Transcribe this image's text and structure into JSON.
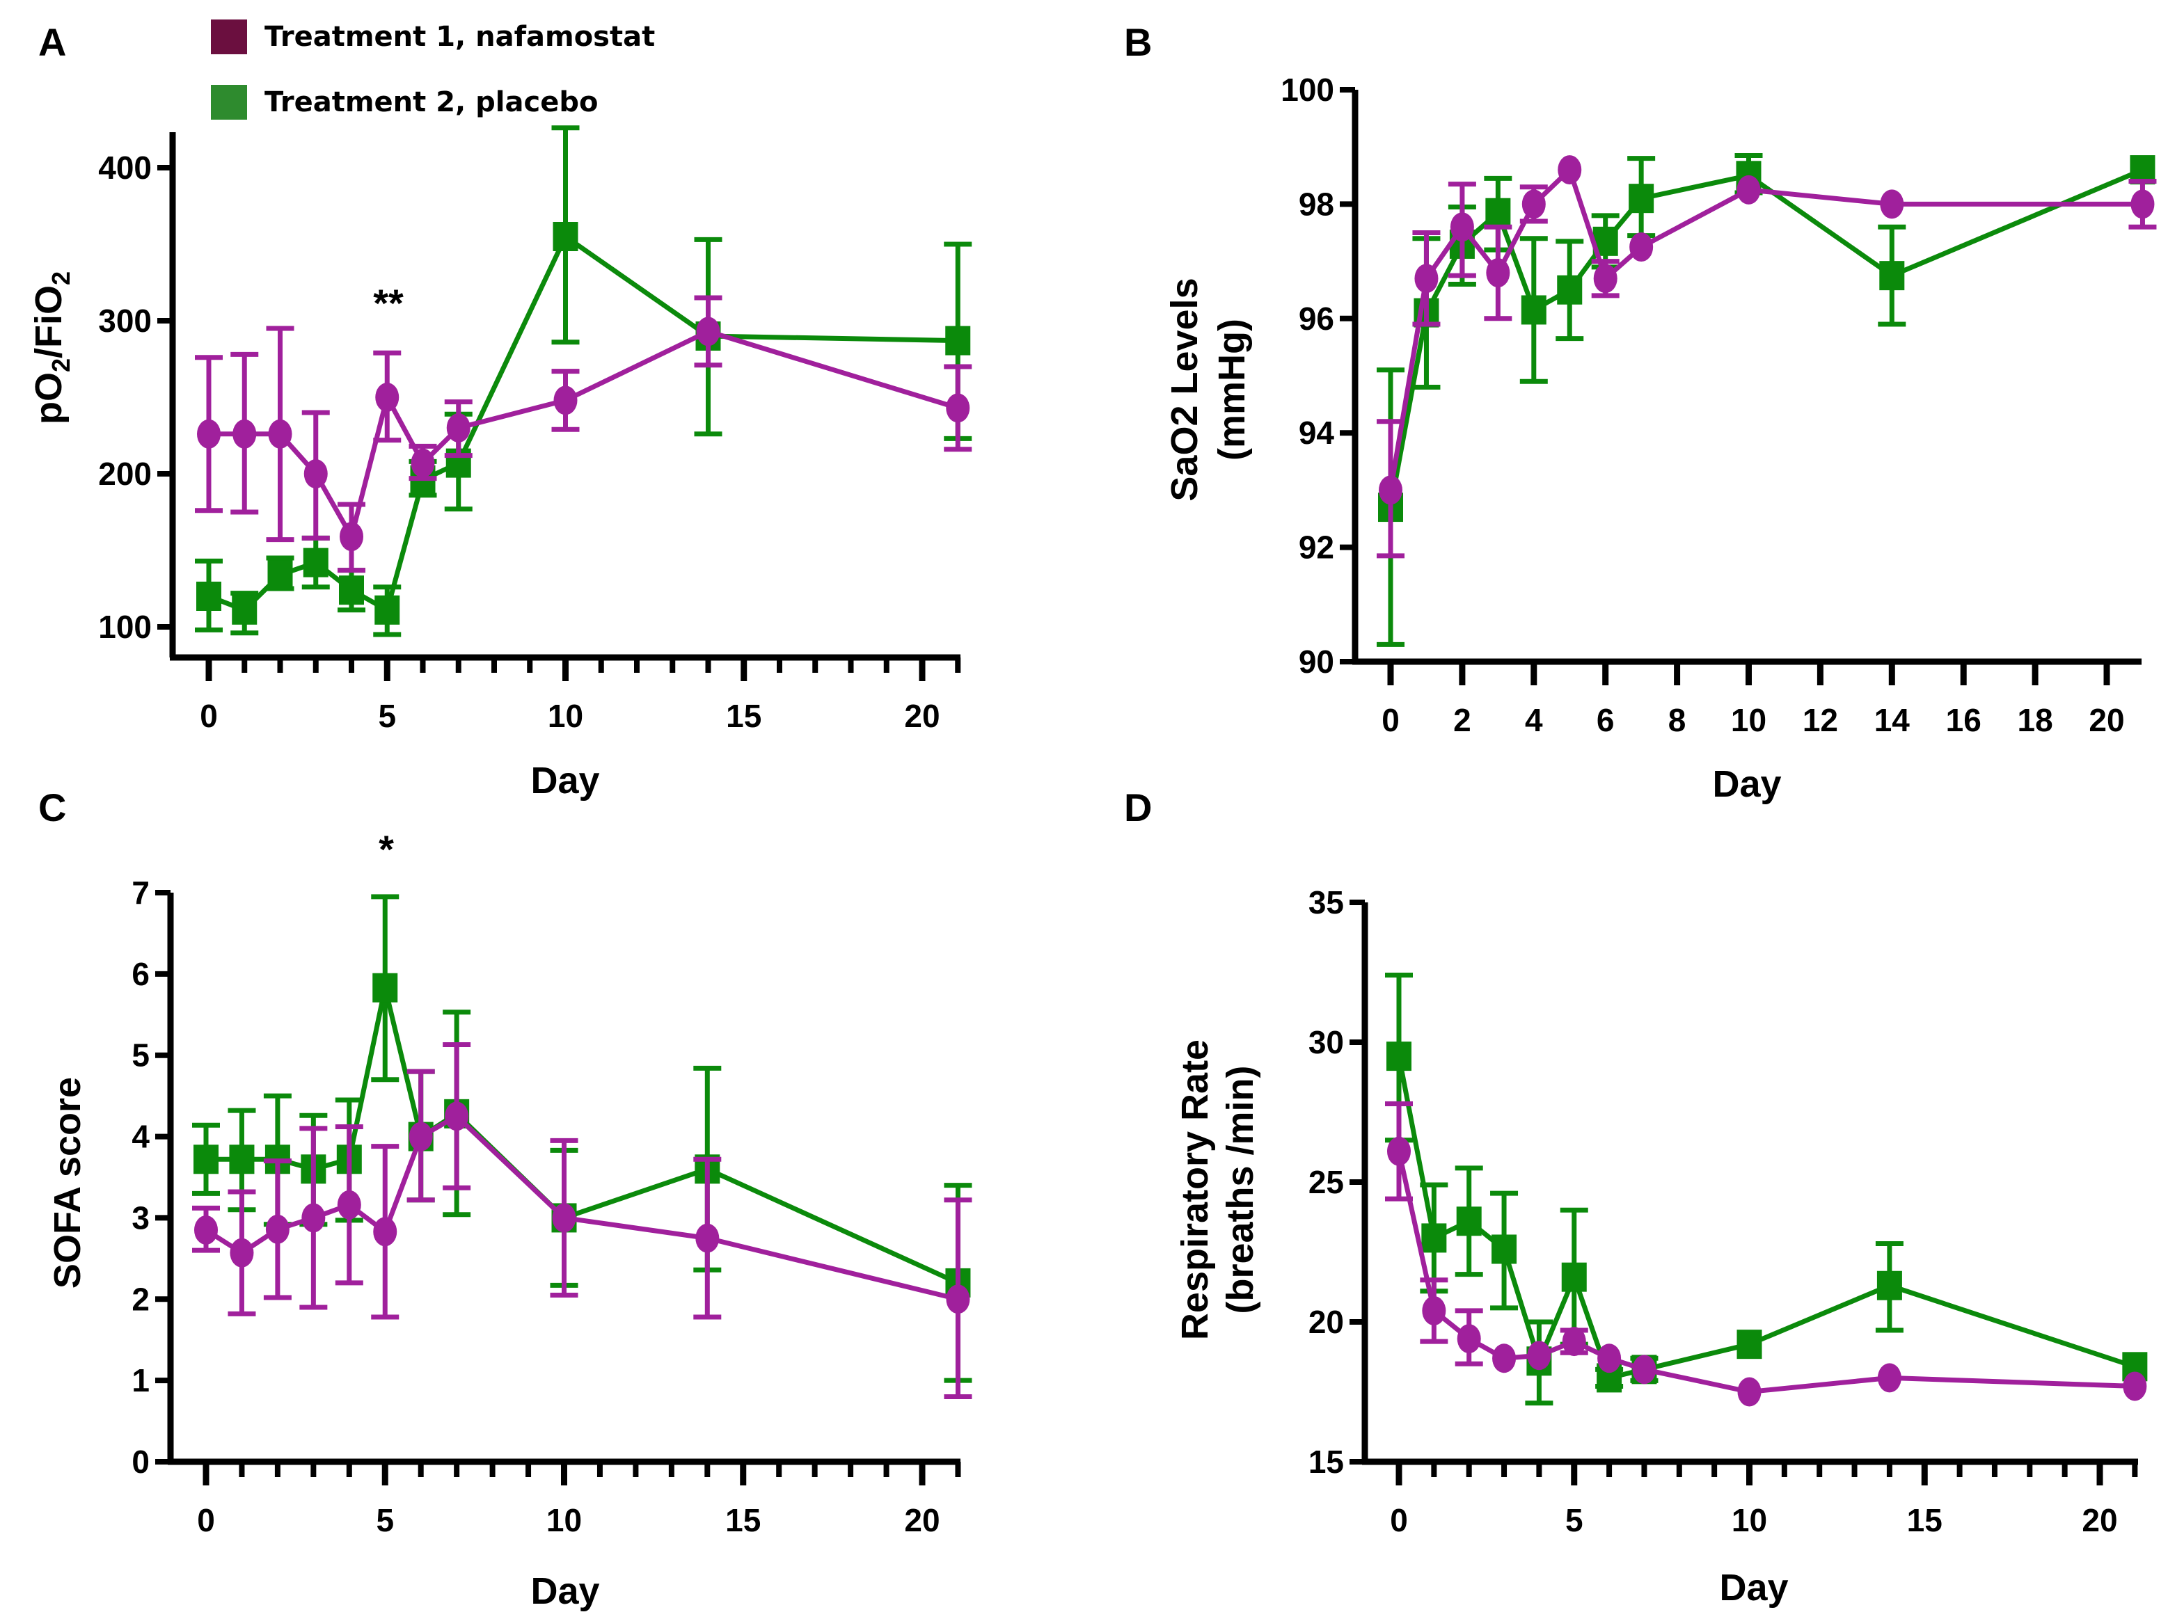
{
  "legend": {
    "items": [
      {
        "label": "Treatment 1, nafamostat",
        "swatch_color": "#6b0f3f"
      },
      {
        "label": "Treatment 2, placebo",
        "swatch_color": "#2e8b2e"
      }
    ]
  },
  "series_colors": {
    "nafamostat": "#a0209c",
    "placebo": "#0b8a0b"
  },
  "chart_data": [
    {
      "panel": "A",
      "type": "line",
      "title": "",
      "xlabel": "Day",
      "ylabel": "pO2/FiO2",
      "xlim": [
        -1,
        21
      ],
      "ylim": [
        85,
        435
      ],
      "xticks": [
        0,
        5,
        10,
        15,
        20
      ],
      "yticks": [
        100,
        200,
        300,
        400
      ],
      "annotations": [
        {
          "text": "**",
          "x": 5,
          "y": 320
        }
      ],
      "series": [
        {
          "name": "Treatment 1, nafamostat",
          "marker": "circle",
          "x": [
            0,
            1,
            2,
            3,
            4,
            5,
            6,
            7,
            10,
            14,
            21
          ],
          "y": [
            226,
            226,
            226,
            200,
            159,
            250,
            207,
            230,
            248,
            293,
            243
          ],
          "err_low": [
            176,
            175,
            157,
            158,
            137,
            222,
            197,
            212,
            229,
            271,
            216
          ],
          "err_high": [
            276,
            278,
            295,
            240,
            180,
            279,
            218,
            247,
            267,
            315,
            270
          ]
        },
        {
          "name": "Treatment 2, placebo",
          "marker": "square",
          "x": [
            0,
            1,
            2,
            3,
            4,
            5,
            6,
            7,
            10,
            14,
            21
          ],
          "y": [
            120,
            111,
            134,
            142,
            124,
            111,
            196,
            207,
            355,
            290,
            287
          ],
          "err_low": [
            98,
            96,
            125,
            126,
            111,
            95,
            186,
            177,
            286,
            226,
            223
          ],
          "err_high": [
            143,
            122,
            145,
            158,
            137,
            126,
            208,
            239,
            426,
            353,
            350
          ]
        }
      ]
    },
    {
      "panel": "B",
      "type": "line",
      "title": "",
      "xlabel": "Day",
      "ylabel": "SaO2 Levels (mmHg)",
      "xlim": [
        -1,
        21
      ],
      "ylim": [
        90,
        100
      ],
      "xticks": [
        0,
        2,
        4,
        6,
        8,
        10,
        12,
        14,
        16,
        18,
        20
      ],
      "yticks": [
        90,
        92,
        94,
        96,
        98,
        100
      ],
      "series": [
        {
          "name": "Treatment 1, nafamostat",
          "marker": "circle",
          "x": [
            0,
            1,
            2,
            3,
            4,
            5,
            6,
            7,
            10,
            14,
            21
          ],
          "y": [
            93.0,
            96.7,
            97.6,
            96.8,
            98.0,
            98.6,
            96.7,
            97.25,
            98.25,
            98.0,
            98.0
          ],
          "err_low": [
            91.85,
            95.9,
            96.75,
            96.0,
            97.7,
            98.6,
            96.4,
            97.25,
            98.25,
            98.0,
            97.6
          ],
          "err_high": [
            94.2,
            97.5,
            98.35,
            97.6,
            98.3,
            98.6,
            97.0,
            97.25,
            98.25,
            98.0,
            98.4
          ]
        },
        {
          "name": "Treatment 2, placebo",
          "marker": "square",
          "x": [
            0,
            1,
            2,
            3,
            4,
            5,
            6,
            7,
            10,
            14,
            21
          ],
          "y": [
            92.7,
            96.1,
            97.3,
            97.85,
            96.15,
            96.5,
            97.35,
            98.1,
            98.5,
            96.75,
            98.6
          ],
          "err_low": [
            90.3,
            94.8,
            96.6,
            97.2,
            94.9,
            95.65,
            96.9,
            97.45,
            98.2,
            95.9,
            98.6
          ],
          "err_high": [
            95.1,
            97.4,
            97.95,
            98.45,
            97.4,
            97.35,
            97.8,
            98.8,
            98.85,
            97.6,
            98.6
          ]
        }
      ]
    },
    {
      "panel": "C",
      "type": "line",
      "title": "",
      "xlabel": "Day",
      "ylabel": "SOFA score",
      "xlim": [
        -1,
        21
      ],
      "ylim": [
        0,
        7
      ],
      "xticks": [
        0,
        5,
        10,
        15,
        20
      ],
      "yticks": [
        0,
        1,
        2,
        3,
        4,
        5,
        6,
        7
      ],
      "annotations": [
        {
          "text": "*",
          "x": 5,
          "y": 7.5
        }
      ],
      "series": [
        {
          "name": "Treatment 1, nafamostat",
          "marker": "circle",
          "x": [
            0,
            1,
            2,
            3,
            4,
            5,
            6,
            7,
            10,
            14,
            21
          ],
          "y": [
            2.85,
            2.57,
            2.86,
            3.0,
            3.16,
            2.83,
            4.0,
            4.25,
            3.0,
            2.75,
            2.0
          ],
          "err_low": [
            2.6,
            1.82,
            2.02,
            1.9,
            2.2,
            1.78,
            3.22,
            3.37,
            2.05,
            1.78,
            0.8
          ],
          "err_high": [
            3.12,
            3.32,
            3.7,
            4.1,
            4.12,
            3.88,
            4.8,
            5.13,
            3.95,
            3.72,
            3.22
          ]
        },
        {
          "name": "Treatment 2, placebo",
          "marker": "square",
          "x": [
            0,
            1,
            2,
            3,
            4,
            5,
            6,
            7,
            10,
            14,
            21
          ],
          "y": [
            3.72,
            3.72,
            3.72,
            3.6,
            3.72,
            5.83,
            4.0,
            4.28,
            3.0,
            3.6,
            2.2
          ],
          "err_low": [
            3.3,
            3.1,
            2.92,
            2.92,
            2.97,
            4.7,
            3.22,
            3.04,
            2.17,
            2.36,
            1.0
          ],
          "err_high": [
            4.14,
            4.32,
            4.5,
            4.26,
            4.45,
            6.95,
            4.8,
            5.53,
            3.83,
            4.84,
            3.4
          ]
        }
      ]
    },
    {
      "panel": "D",
      "type": "line",
      "title": "",
      "xlabel": "Day",
      "ylabel": "Respiratory Rate (breaths /min)",
      "xlim": [
        -1,
        21
      ],
      "ylim": [
        15,
        35
      ],
      "xticks": [
        0,
        5,
        10,
        15,
        20
      ],
      "yticks": [
        15,
        20,
        25,
        30,
        35
      ],
      "series": [
        {
          "name": "Treatment 1, nafamostat",
          "marker": "circle",
          "x": [
            0,
            1,
            2,
            3,
            4,
            5,
            6,
            7,
            10,
            14,
            21
          ],
          "y": [
            26.1,
            20.4,
            19.4,
            18.7,
            18.8,
            19.3,
            18.7,
            18.3,
            17.5,
            18.0,
            17.7
          ],
          "err_low": [
            24.4,
            19.3,
            18.5,
            18.7,
            18.8,
            18.9,
            18.7,
            18.3,
            17.5,
            18.0,
            17.7
          ],
          "err_high": [
            27.8,
            21.5,
            20.4,
            18.7,
            18.8,
            19.7,
            18.7,
            18.3,
            17.5,
            18.0,
            17.7
          ]
        },
        {
          "name": "Treatment 2, placebo",
          "marker": "square",
          "x": [
            0,
            1,
            2,
            3,
            4,
            5,
            6,
            7,
            10,
            14,
            21
          ],
          "y": [
            29.5,
            23.0,
            23.6,
            22.6,
            18.6,
            21.6,
            18.0,
            18.3,
            19.2,
            21.3,
            18.4
          ],
          "err_low": [
            26.5,
            21.1,
            21.7,
            20.5,
            17.1,
            19.2,
            17.7,
            17.9,
            19.2,
            19.7,
            18.4
          ],
          "err_high": [
            32.4,
            24.9,
            25.5,
            24.6,
            20.0,
            24.0,
            18.3,
            18.7,
            19.2,
            22.8,
            18.4
          ]
        }
      ]
    }
  ],
  "panels": [
    {
      "letter": "A",
      "ylabel_main": "pO",
      "ylabel_sub1": "2",
      "ylabel_mid": "/FiO",
      "ylabel_sub2": "2",
      "xlabel": "Day",
      "sig": "**"
    },
    {
      "letter": "B",
      "ylabel_line1": "SaO2 Levels",
      "ylabel_line2": "(mmHg)",
      "xlabel": "Day"
    },
    {
      "letter": "C",
      "ylabel_line1": "SOFA score",
      "xlabel": "Day",
      "sig": "*"
    },
    {
      "letter": "D",
      "ylabel_line1": "Respiratory Rate",
      "ylabel_line2": "(breaths /min)",
      "xlabel": "Day"
    }
  ]
}
